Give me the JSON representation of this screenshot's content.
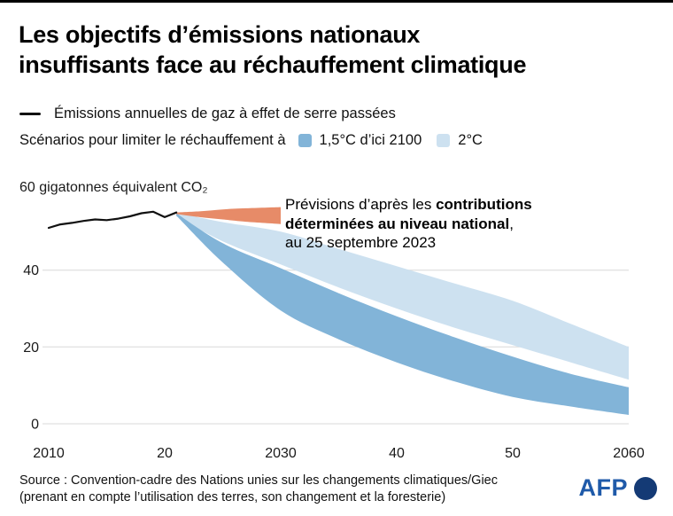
{
  "header": {
    "title_line1": "Les objectifs d’émissions nationaux",
    "title_line2": "insuffisants face au réchauffement climatique"
  },
  "legend": {
    "past_line_label": "Émissions annuelles de gaz à effet de serre passées",
    "scenario_prefix": "Scénarios pour limiter le réchauffement à",
    "scenario_1_5_label": "1,5°C d’ici 2100",
    "scenario_2_label": "2°C"
  },
  "annotation": {
    "prefix": "Prévisions d’après les ",
    "bold": "contributions déterminées au niveau national",
    "comma": ",",
    "date_line": "au 25 septembre 2023"
  },
  "footer": {
    "source_line1": "Source : Convention-cadre des Nations unies sur les changements climatiques/Giec",
    "source_line2": "(prenant en compte l’utilisation des terres, son changement et la foresterie)",
    "logo_text": "AFP"
  },
  "colors": {
    "past_line": "#111111",
    "scenario_1_5": "#82b4d8",
    "scenario_2": "#cde1f0",
    "ndc_band": "#e78b68",
    "grid": "#d8d8d8",
    "tick_text": "#1a1a1a",
    "afp_blue": "#1f5aa9",
    "afp_circle": "#143a75"
  },
  "chart_data": {
    "type": "area",
    "title": "Les objectifs d’émissions nationaux insuffisants face au réchauffement climatique",
    "unit_label": "60 gigatonnes équivalent CO₂",
    "xlabel": "",
    "ylabel": "gigatonnes équivalent CO₂",
    "xlim": [
      2010,
      2060
    ],
    "ylim": [
      0,
      60
    ],
    "grid": true,
    "x_ticks": [
      2010,
      2020,
      2030,
      2040,
      2050,
      2060
    ],
    "x_tick_labels": [
      "2010",
      "20",
      "2030",
      "40",
      "50",
      "2060"
    ],
    "y_ticks": [
      0,
      20,
      40
    ],
    "series": [
      {
        "id": "scenario-2c",
        "kind": "band",
        "name": "2°C",
        "color_key": "scenario_2",
        "x": [
          2021,
          2025,
          2030,
          2035,
          2040,
          2045,
          2050,
          2055,
          2060
        ],
        "upper": [
          55.0,
          52.5,
          50.0,
          45.5,
          41.0,
          36.5,
          32.0,
          26.0,
          20.0
        ],
        "lower": [
          54.0,
          47.5,
          41.5,
          35.5,
          30.0,
          25.0,
          20.5,
          16.0,
          11.5
        ]
      },
      {
        "id": "scenario-1-5c",
        "kind": "band",
        "name": "1,5°C d’ici 2100",
        "color_key": "scenario_1_5",
        "x": [
          2021,
          2025,
          2030,
          2035,
          2040,
          2045,
          2050,
          2055,
          2060
        ],
        "upper": [
          54.8,
          47.0,
          40.5,
          34.0,
          28.0,
          22.5,
          17.5,
          13.0,
          9.5
        ],
        "lower": [
          54.2,
          42.0,
          29.5,
          22.0,
          16.0,
          11.0,
          7.0,
          4.5,
          2.3
        ]
      },
      {
        "id": "ndc-projection",
        "kind": "band",
        "name": "Prévisions d’après les contributions déterminées au niveau national, au 25 septembre 2023",
        "color_key": "ndc_band",
        "x": [
          2021,
          2023,
          2025,
          2027,
          2030
        ],
        "upper": [
          55.0,
          55.3,
          55.8,
          56.1,
          56.4
        ],
        "lower": [
          54.6,
          53.8,
          53.2,
          52.6,
          52.0
        ]
      },
      {
        "id": "historical",
        "kind": "line",
        "name": "Émissions annuelles de gaz à effet de serre passées",
        "color_key": "past_line",
        "x": [
          2010,
          2011,
          2012,
          2013,
          2014,
          2015,
          2016,
          2017,
          2018,
          2019,
          2020,
          2021
        ],
        "y": [
          51.0,
          51.9,
          52.3,
          52.8,
          53.2,
          53.0,
          53.4,
          54.0,
          54.8,
          55.2,
          53.8,
          55.0
        ]
      }
    ]
  }
}
